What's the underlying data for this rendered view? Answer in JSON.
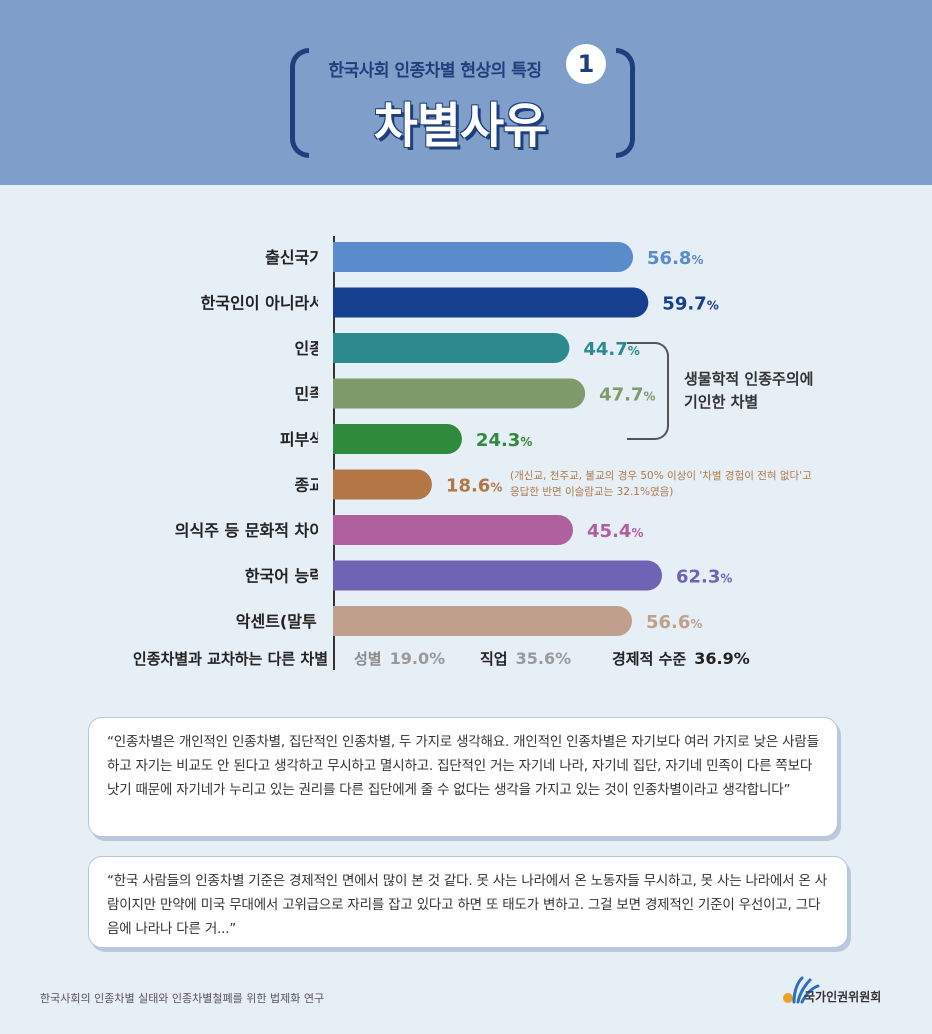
{
  "header": {
    "subtitle": "한국사회 인종차별 현상의 특징",
    "number": "1",
    "title": "차별사유"
  },
  "chart_data": {
    "type": "bar",
    "orientation": "horizontal",
    "categories": [
      "출신국가",
      "한국인이 아니라서",
      "인종",
      "민족",
      "피부색",
      "종교",
      "의식주 등 문화적 차이",
      "한국어 능력",
      "악센트(말투)"
    ],
    "values": [
      56.8,
      59.7,
      44.7,
      47.7,
      24.3,
      18.6,
      45.4,
      62.3,
      56.6
    ],
    "value_labels": [
      "56.8",
      "59.7",
      "44.7",
      "47.7",
      "24.3",
      "18.6",
      "45.4",
      "62.3",
      "56.6"
    ],
    "unit": "%",
    "colors": [
      "#5a8ccc",
      "#173f8f",
      "#2c8a8f",
      "#7f9a6b",
      "#2f8a3c",
      "#b37746",
      "#b0609f",
      "#6f63b5",
      "#c0a08c"
    ],
    "label_colors": [
      "#5a8ccc",
      "#173f8f",
      "#2c8a8f",
      "#7f9a6b",
      "#2f8a3c",
      "#b37746",
      "#b0609f",
      "#6f63b5",
      "#c0a08c"
    ],
    "xlim": [
      0,
      70
    ]
  },
  "annotations": {
    "bracket_label_line1": "생물학적 인종주의에",
    "bracket_label_line2": "기인한 차별",
    "religion_note_line1": "(개신교, 천주교, 불교의 경우 50% 이상이 '차별 경험이 전혀 없다'고",
    "religion_note_line2": "응답한 반면 이슬람교는 32.1%였음)"
  },
  "cross": {
    "label": "인종차별과 교차하는 다른 차별",
    "items": [
      {
        "name": "성별",
        "value": "19.0%"
      },
      {
        "name": "직업",
        "value": "35.6%"
      },
      {
        "name": "경제적 수준",
        "value": "36.9%"
      }
    ]
  },
  "quotes": {
    "q1": "“인종차별은 개인적인 인종차별, 집단적인 인종차별, 두 가지로 생각해요. 개인적인 인종차별은 자기보다 여러 가지로 낮은 사람들하고 자기는 비교도 안 된다고 생각하고 무시하고 멸시하고. 집단적인 거는 자기네 나라, 자기네 집단, 자기네 민족이 다른 쪽보다 낫기 때문에 자기네가 누리고 있는 권리를 다른 집단에게 줄 수 없다는 생각을 가지고 있는 것이 인종차별이라고 생각합니다”",
    "q2": "“한국 사람들의 인종차별 기준은 경제적인 면에서 많이 본 것 같다. 못 사는 나라에서 온 노동자들 무시하고, 못 사는 나라에서 온 사람이지만 만약에 미국 무대에서 고위급으로 자리를 잡고 있다고 하면 또 태도가 변하고. 그걸 보면 경제적인 기준이 우선이고, 그다음에 나라나 다른 거...”"
  },
  "footer": {
    "source": "한국사회의 인종차별 실태와 인종차별철폐를 위한 법제화 연구",
    "logo": "국가인권위원회"
  }
}
